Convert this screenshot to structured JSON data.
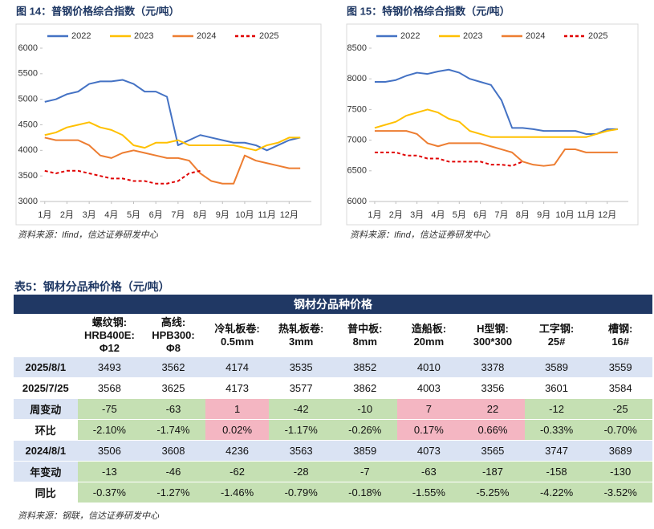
{
  "chart_data": [
    {
      "type": "line",
      "title": "图 14：普钢价格综合指数（元/吨）",
      "source": "资料来源：Ifind，信达证券研发中心",
      "x": [
        1,
        1.5,
        2,
        2.5,
        3,
        3.5,
        4,
        4.5,
        5,
        5.5,
        6,
        6.5,
        7,
        7.5,
        8,
        8.5,
        9,
        9.5,
        10,
        10.5,
        11,
        11.5,
        12,
        12.5
      ],
      "xlim": [
        0.9,
        13
      ],
      "xticks": [
        {
          "value": 1,
          "label": "1月"
        },
        {
          "value": 2,
          "label": "2月"
        },
        {
          "value": 3,
          "label": "3月"
        },
        {
          "value": 4,
          "label": "4月"
        },
        {
          "value": 5,
          "label": "5月"
        },
        {
          "value": 6,
          "label": "6月"
        },
        {
          "value": 7,
          "label": "7月"
        },
        {
          "value": 8,
          "label": "8月"
        },
        {
          "value": 9,
          "label": "9月"
        },
        {
          "value": 10,
          "label": "10月"
        },
        {
          "value": 11,
          "label": "11月"
        },
        {
          "value": 12,
          "label": "12月"
        }
      ],
      "ylim": [
        3000,
        6000
      ],
      "yticks": [
        3000,
        3500,
        4000,
        4500,
        5000,
        5500,
        6000
      ],
      "series": [
        {
          "name": "2022",
          "color": "#4472c4",
          "values": [
            4950,
            5000,
            5100,
            5150,
            5300,
            5350,
            5350,
            5380,
            5300,
            5150,
            5150,
            5050,
            4100,
            4200,
            4300,
            4250,
            4200,
            4150,
            4150,
            4100,
            4000,
            4100,
            4200,
            4250
          ]
        },
        {
          "name": "2023",
          "color": "#ffc000",
          "values": [
            4300,
            4350,
            4450,
            4500,
            4550,
            4450,
            4400,
            4300,
            4100,
            4050,
            4150,
            4150,
            4200,
            4100,
            4100,
            4100,
            4100,
            4100,
            4050,
            4000,
            4100,
            4150,
            4250,
            4250
          ]
        },
        {
          "name": "2024",
          "color": "#ed7d31",
          "values": [
            4250,
            4200,
            4200,
            4200,
            4100,
            3900,
            3850,
            3950,
            4000,
            3950,
            3900,
            3850,
            3850,
            3800,
            3550,
            3400,
            3350,
            3350,
            3900,
            3800,
            3750,
            3700,
            3650,
            3650
          ]
        },
        {
          "name": "2025",
          "color": "#e00000",
          "dashed": true,
          "values": [
            3600,
            3550,
            3600,
            3600,
            3550,
            3500,
            3450,
            3450,
            3400,
            3400,
            3350,
            3350,
            3400,
            3550,
            3600,
            null,
            null,
            null,
            null,
            null,
            null,
            null,
            null,
            null
          ]
        }
      ]
    },
    {
      "type": "line",
      "title": "图 15：特钢价格综合指数（元/吨）",
      "source": "资料来源：Ifind，信达证券研发中心",
      "x": [
        1,
        1.5,
        2,
        2.5,
        3,
        3.5,
        4,
        4.5,
        5,
        5.5,
        6,
        6.5,
        7,
        7.5,
        8,
        8.5,
        9,
        9.5,
        10,
        10.5,
        11,
        11.5,
        12,
        12.5
      ],
      "xlim": [
        0.85,
        13
      ],
      "xticks": [
        {
          "value": 1,
          "label": "1月"
        },
        {
          "value": 2,
          "label": "2月"
        },
        {
          "value": 3,
          "label": "3月"
        },
        {
          "value": 4,
          "label": "4月"
        },
        {
          "value": 5,
          "label": "5月"
        },
        {
          "value": 6,
          "label": "6月"
        },
        {
          "value": 7,
          "label": "7月"
        },
        {
          "value": 8,
          "label": "8月"
        },
        {
          "value": 9,
          "label": "9月"
        },
        {
          "value": 10,
          "label": "10月"
        },
        {
          "value": 11,
          "label": "11月"
        },
        {
          "value": 12,
          "label": "12月"
        }
      ],
      "ylim": [
        6000,
        8500
      ],
      "yticks": [
        6000,
        6500,
        7000,
        7500,
        8000,
        8500
      ],
      "series": [
        {
          "name": "2022",
          "color": "#4472c4",
          "values": [
            7950,
            7950,
            7980,
            8050,
            8100,
            8080,
            8120,
            8150,
            8100,
            8000,
            7950,
            7900,
            7650,
            7200,
            7200,
            7180,
            7150,
            7150,
            7150,
            7150,
            7100,
            7100,
            7180,
            7180
          ]
        },
        {
          "name": "2023",
          "color": "#ffc000",
          "values": [
            7200,
            7250,
            7300,
            7400,
            7450,
            7500,
            7450,
            7350,
            7300,
            7150,
            7100,
            7050,
            7050,
            7050,
            7050,
            7050,
            7050,
            7050,
            7050,
            7050,
            7050,
            7100,
            7150,
            7180
          ]
        },
        {
          "name": "2024",
          "color": "#ed7d31",
          "values": [
            7150,
            7150,
            7150,
            7150,
            7100,
            6950,
            6900,
            6950,
            6950,
            6950,
            6950,
            6900,
            6850,
            6800,
            6650,
            6600,
            6580,
            6600,
            6850,
            6850,
            6800,
            6800,
            6800,
            6800
          ]
        },
        {
          "name": "2025",
          "color": "#e00000",
          "dashed": true,
          "values": [
            6800,
            6800,
            6800,
            6750,
            6750,
            6700,
            6700,
            6650,
            6650,
            6650,
            6650,
            6600,
            6600,
            6580,
            6650,
            null,
            null,
            null,
            null,
            null,
            null,
            null,
            null,
            null
          ]
        }
      ]
    }
  ],
  "table": {
    "caption": "表5：钢材分品种价格（元/吨）",
    "title": "钢材分品种价格",
    "headers": [
      "螺纹钢:\nHRB400E:\nΦ12",
      "高线:\nHPB300:\nΦ8",
      "冷轧板卷:\n0.5mm",
      "热轧板卷:\n3mm",
      "普中板:\n8mm",
      "造船板:\n20mm",
      "H型钢:\n300*300",
      "工字钢:\n25#",
      "槽钢:\n16#"
    ],
    "rows": [
      [
        "2025/8/1",
        "3493",
        "3562",
        "4174",
        "3535",
        "3852",
        "4010",
        "3378",
        "3589",
        "3559"
      ],
      [
        "2025/7/25",
        "3568",
        "3625",
        "4173",
        "3577",
        "3862",
        "4003",
        "3356",
        "3601",
        "3584"
      ],
      [
        "周变动",
        "-75",
        "-63",
        "1",
        "-42",
        "-10",
        "7",
        "22",
        "-12",
        "-25"
      ],
      [
        "环比",
        "-2.10%",
        "-1.74%",
        "0.02%",
        "-1.17%",
        "-0.26%",
        "0.17%",
        "0.66%",
        "-0.33%",
        "-0.70%"
      ],
      [
        "2024/8/1",
        "3506",
        "3608",
        "4236",
        "3563",
        "3859",
        "4073",
        "3565",
        "3747",
        "3689"
      ],
      [
        "年变动",
        "-13",
        "-46",
        "-62",
        "-28",
        "-7",
        "-63",
        "-187",
        "-158",
        "-130"
      ],
      [
        "同比",
        "-0.37%",
        "-1.27%",
        "-1.46%",
        "-0.79%",
        "-0.18%",
        "-1.55%",
        "-5.25%",
        "-4.22%",
        "-3.52%"
      ]
    ],
    "source": "资料来源：钢联，信达证券研发中心"
  }
}
